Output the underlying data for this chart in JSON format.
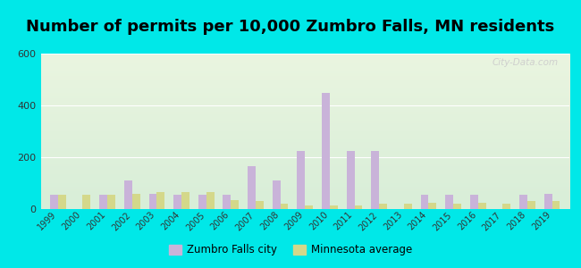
{
  "title": "Number of permits per 10,000 Zumbro Falls, MN residents",
  "years": [
    1999,
    2000,
    2001,
    2002,
    2003,
    2004,
    2005,
    2006,
    2007,
    2008,
    2009,
    2010,
    2011,
    2012,
    2013,
    2014,
    2015,
    2016,
    2017,
    2018,
    2019
  ],
  "zumbro": [
    55,
    0,
    55,
    110,
    60,
    55,
    55,
    55,
    165,
    110,
    225,
    450,
    225,
    225,
    0,
    55,
    55,
    55,
    0,
    55,
    60
  ],
  "mn_avg": [
    55,
    55,
    55,
    60,
    65,
    65,
    65,
    35,
    30,
    20,
    15,
    15,
    15,
    20,
    20,
    25,
    20,
    25,
    20,
    30,
    30
  ],
  "zumbro_color": "#c9b3d9",
  "mn_color": "#d4d88a",
  "ylim": [
    0,
    600
  ],
  "yticks": [
    0,
    200,
    400,
    600
  ],
  "bg_outer": "#00e8e8",
  "legend_zumbro": "Zumbro Falls city",
  "legend_mn": "Minnesota average",
  "title_fontsize": 13,
  "bar_width": 0.32
}
